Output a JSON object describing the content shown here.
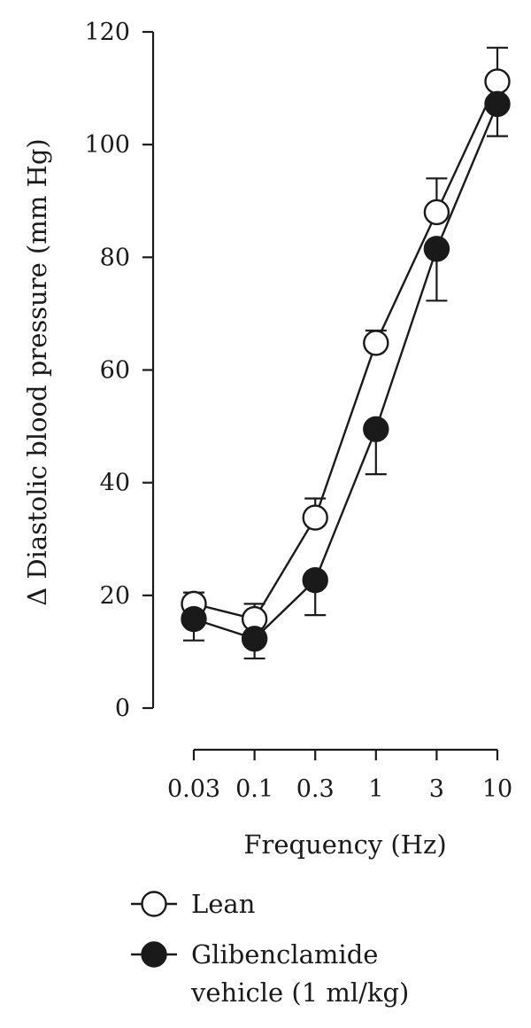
{
  "chart_data": {
    "type": "line",
    "xlabel": "Frequency (Hz)",
    "ylabel": "Δ Diastolic blood pressure (mm Hg)",
    "x_categories": [
      "0.03",
      "0.1",
      "0.3",
      "1",
      "3",
      "10"
    ],
    "ylim": [
      0,
      120
    ],
    "yticks": [
      "0",
      "20",
      "40",
      "60",
      "80",
      "100",
      "120"
    ],
    "legend_position": "bottom",
    "series": [
      {
        "name": "Lean",
        "marker": "open-circle",
        "values": [
          18.5,
          15.8,
          33.8,
          64.8,
          88.0,
          111.2
        ],
        "error_upper": [
          20.5,
          18.5,
          37.2,
          67.0,
          94.0,
          117.2
        ],
        "error_lower": [
          null,
          null,
          null,
          null,
          null,
          null
        ]
      },
      {
        "name": "Glibenclamide vehicle (1 ml/kg)",
        "name_lines": [
          "Glibenclamide",
          "vehicle (1 ml/kg)"
        ],
        "marker": "filled-circle",
        "values": [
          15.8,
          12.3,
          22.7,
          49.5,
          81.5,
          107.2
        ],
        "error_upper": [
          null,
          null,
          null,
          null,
          null,
          null
        ],
        "error_lower": [
          12.0,
          8.8,
          16.5,
          41.5,
          72.3,
          101.5
        ]
      }
    ]
  }
}
